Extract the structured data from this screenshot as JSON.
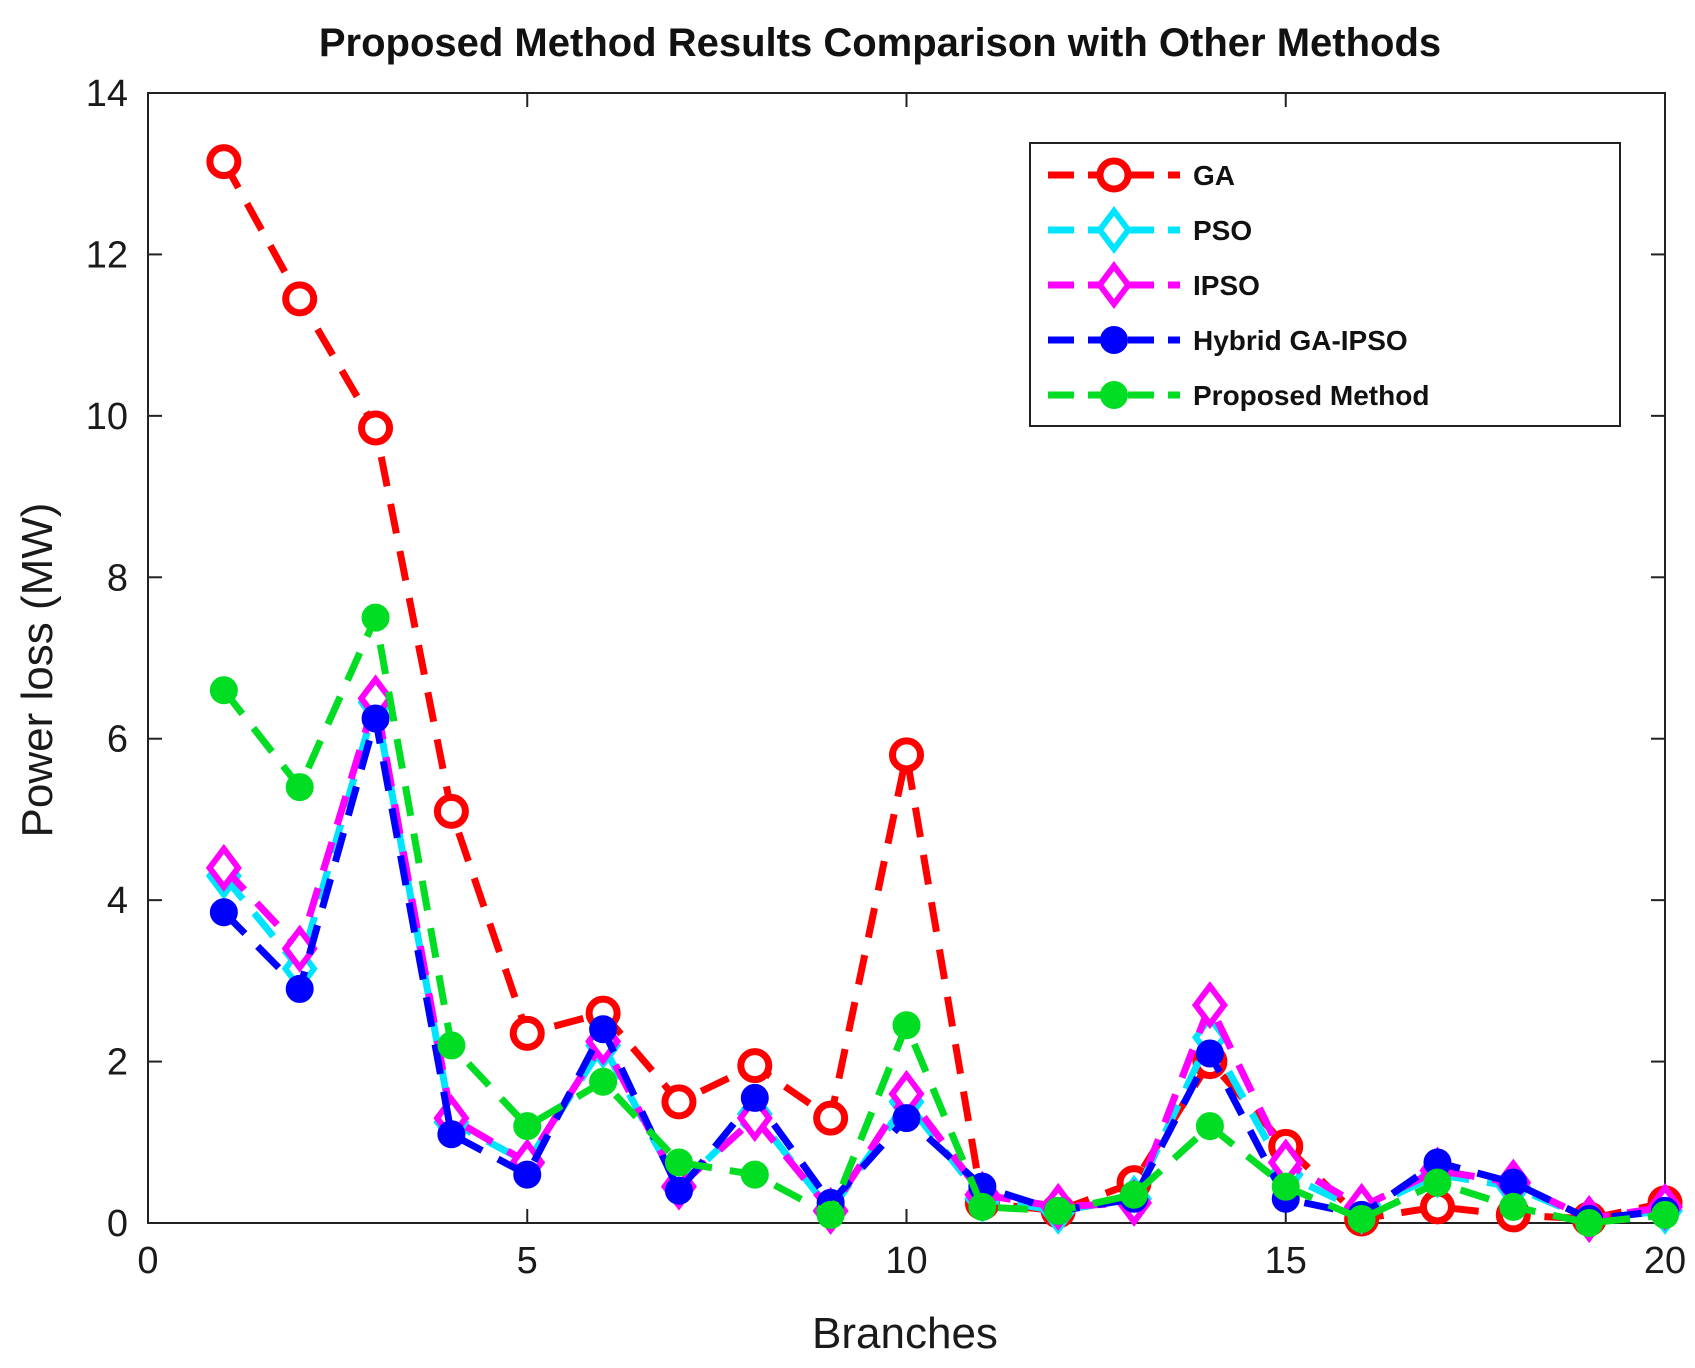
{
  "chart_data": {
    "type": "line",
    "title": "Proposed Method Results Comparison with Other Methods",
    "xlabel": "Branches",
    "ylabel": "Power loss (MW)",
    "xlim": [
      0,
      20
    ],
    "ylim": [
      0,
      14
    ],
    "xticks": [
      0,
      5,
      10,
      15,
      20
    ],
    "yticks": [
      0,
      2,
      4,
      6,
      8,
      10,
      12,
      14
    ],
    "grid": false,
    "legend_position": "top-right",
    "x": [
      1,
      2,
      3,
      4,
      5,
      6,
      7,
      8,
      9,
      10,
      11,
      12,
      13,
      14,
      15,
      16,
      17,
      18,
      19,
      20
    ],
    "series": [
      {
        "name": "GA",
        "color": "#ff0000",
        "marker": "open-circle",
        "values": [
          13.15,
          11.45,
          9.85,
          5.1,
          2.35,
          2.6,
          1.5,
          1.95,
          1.3,
          5.8,
          0.25,
          0.15,
          0.5,
          2.0,
          0.95,
          0.05,
          0.2,
          0.1,
          0.05,
          0.25
        ]
      },
      {
        "name": "PSO",
        "color": "#00e5ff",
        "marker": "open-diamond",
        "values": [
          4.3,
          3.15,
          6.45,
          1.25,
          0.75,
          2.2,
          0.45,
          1.35,
          0.15,
          1.5,
          0.3,
          0.15,
          0.3,
          2.3,
          0.6,
          0.15,
          0.6,
          0.45,
          0.05,
          0.15
        ]
      },
      {
        "name": "IPSO",
        "color": "#ff00ff",
        "marker": "open-diamond",
        "values": [
          4.4,
          3.4,
          6.5,
          1.3,
          0.75,
          2.25,
          0.45,
          1.3,
          0.15,
          1.6,
          0.35,
          0.2,
          0.25,
          2.7,
          0.75,
          0.2,
          0.65,
          0.5,
          0.05,
          0.2
        ]
      },
      {
        "name": "Hybrid GA-IPSO",
        "color": "#0000ff",
        "marker": "filled-circle",
        "values": [
          3.85,
          2.9,
          6.25,
          1.1,
          0.6,
          2.4,
          0.4,
          1.55,
          0.25,
          1.3,
          0.45,
          0.15,
          0.3,
          2.1,
          0.3,
          0.1,
          0.75,
          0.5,
          0.05,
          0.15
        ]
      },
      {
        "name": "Proposed Method",
        "color": "#00dd22",
        "marker": "filled-circle",
        "values": [
          6.6,
          5.4,
          7.5,
          2.2,
          1.2,
          1.75,
          0.75,
          0.6,
          0.1,
          2.45,
          0.2,
          0.15,
          0.35,
          1.2,
          0.45,
          0.05,
          0.5,
          0.2,
          0.0,
          0.1
        ]
      }
    ]
  }
}
